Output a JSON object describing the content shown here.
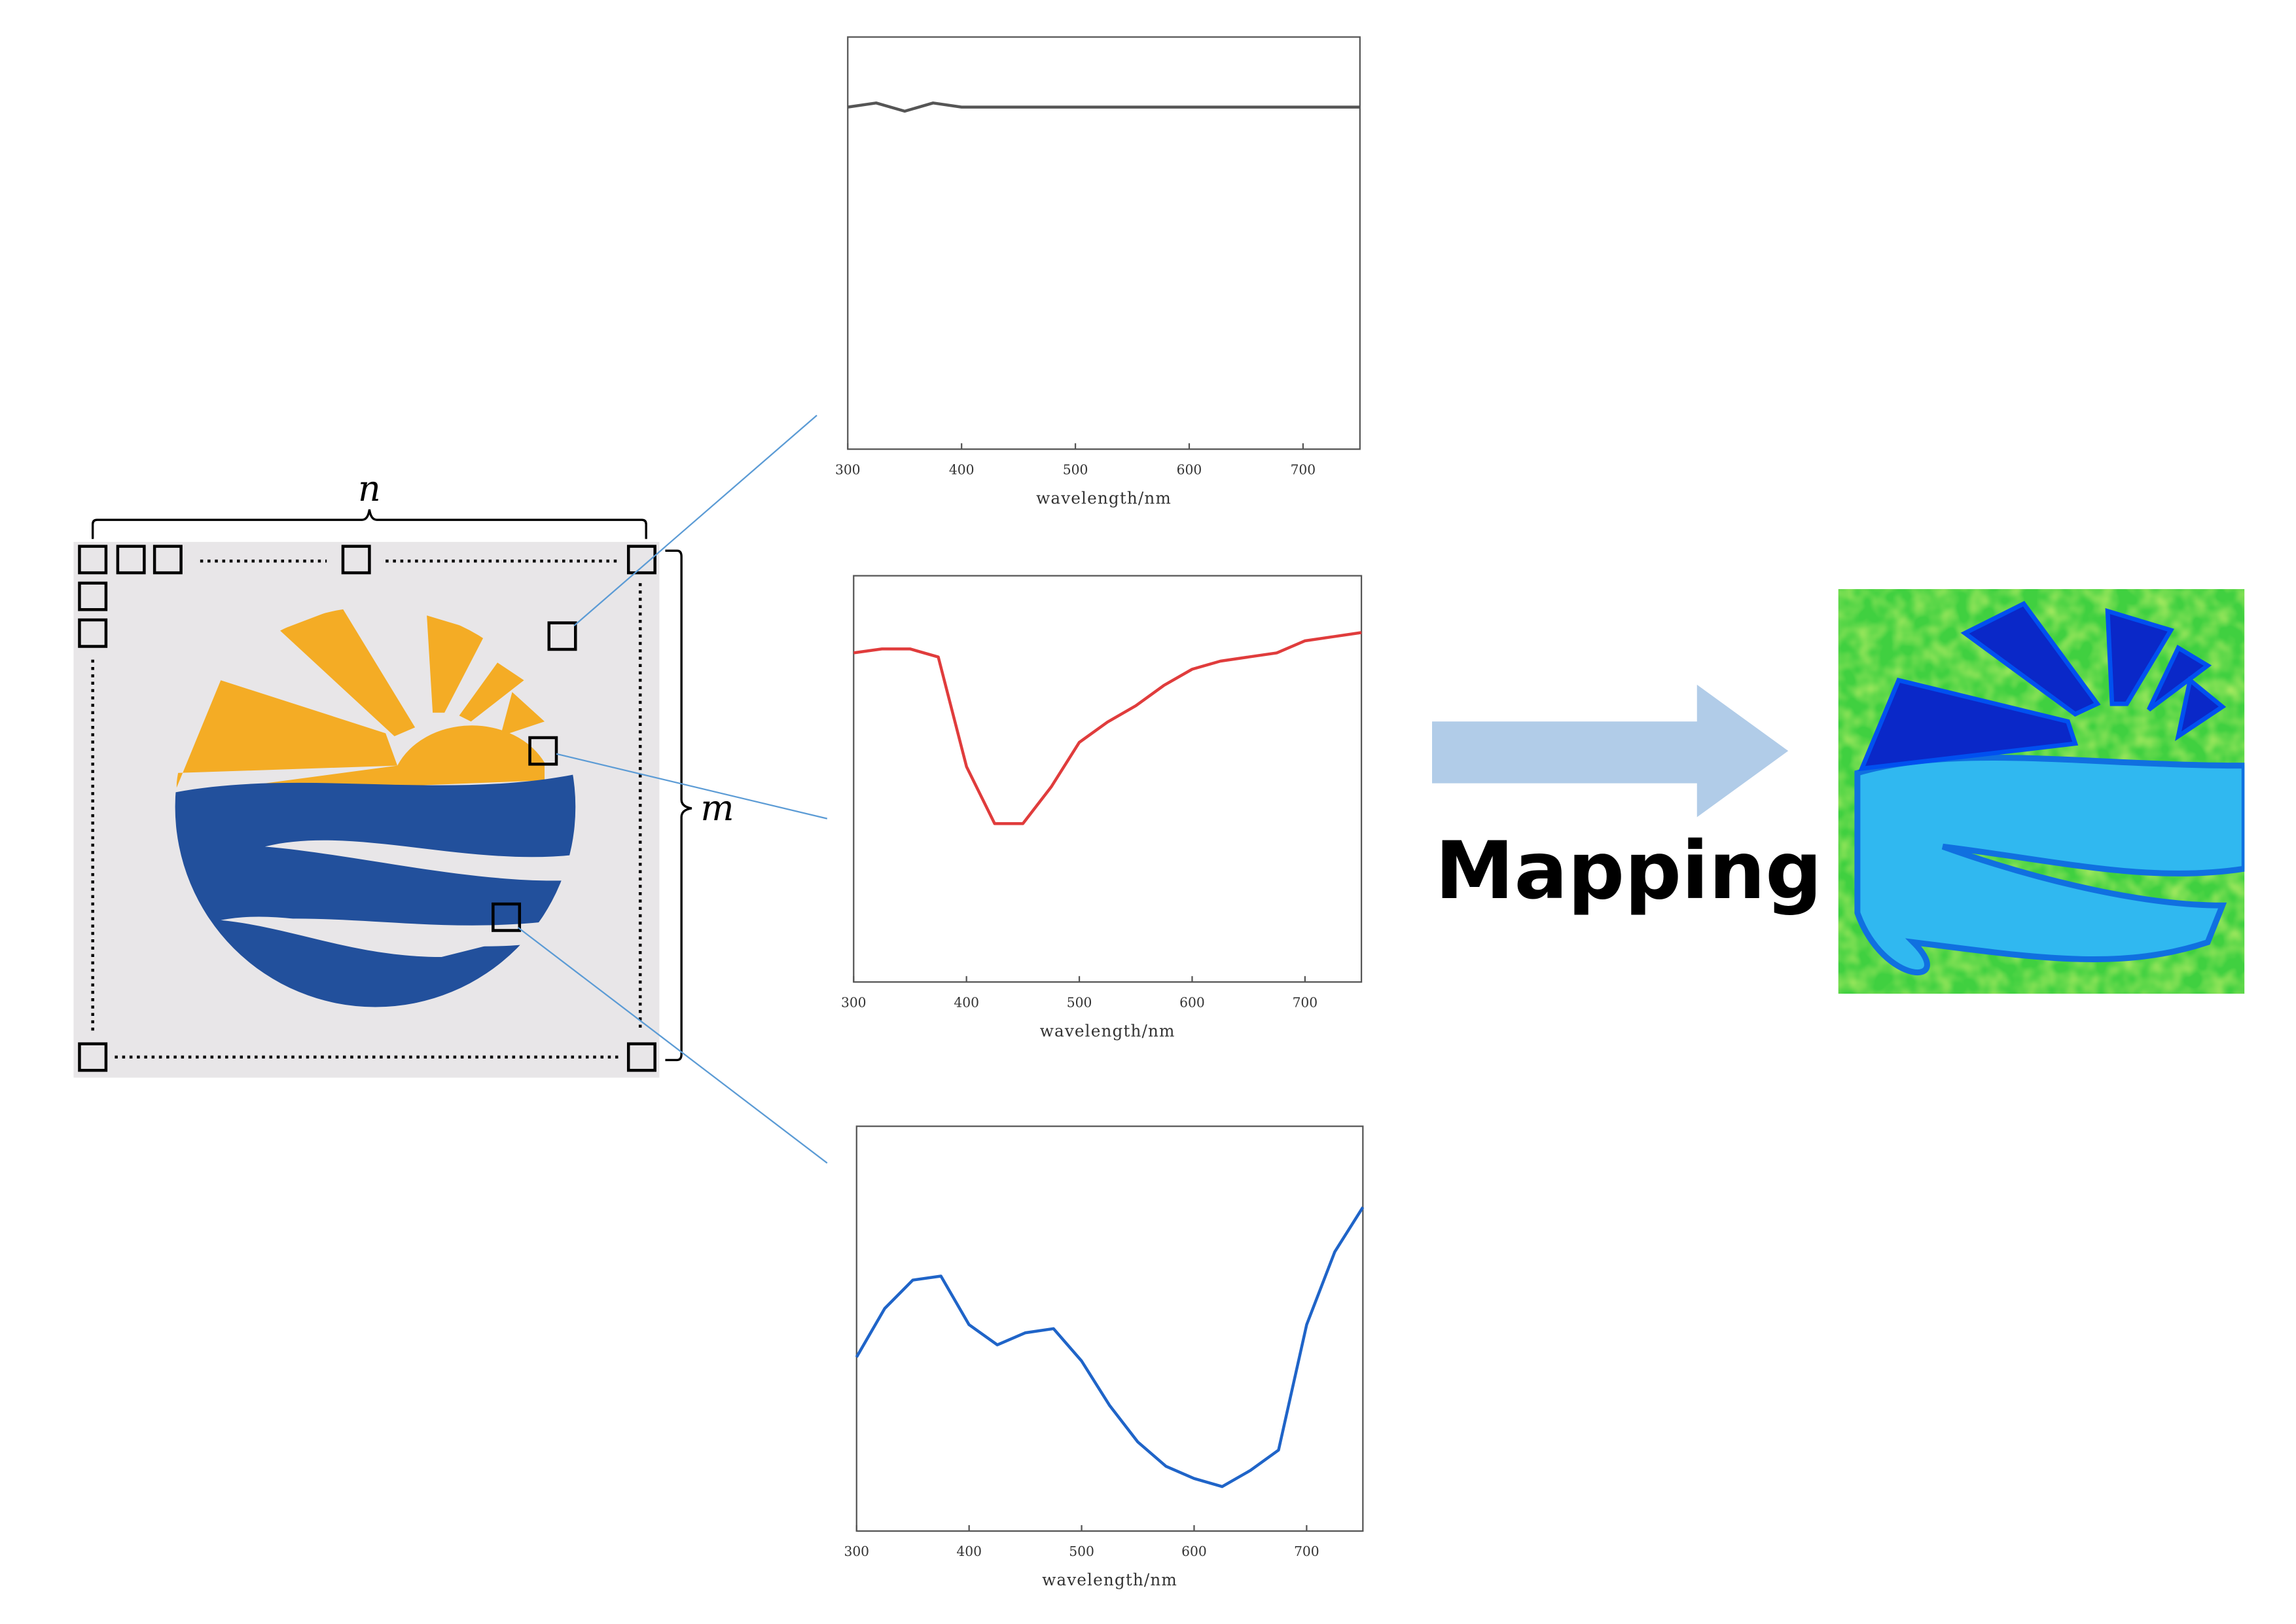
{
  "labels": {
    "n": "n",
    "m": "m",
    "mapping": "Mapping"
  },
  "chart_data": [
    {
      "type": "line",
      "color": "#555555",
      "x": [
        300,
        325,
        350,
        375,
        400,
        425,
        450,
        475,
        500,
        525,
        550,
        575,
        600,
        625,
        650,
        675,
        700,
        725,
        750
      ],
      "values": [
        0.83,
        0.84,
        0.82,
        0.84,
        0.83,
        0.83,
        0.83,
        0.83,
        0.83,
        0.83,
        0.83,
        0.83,
        0.83,
        0.83,
        0.83,
        0.83,
        0.83,
        0.83,
        0.83
      ],
      "xlim": [
        300,
        750
      ],
      "xticks": [
        300,
        400,
        500,
        600,
        700
      ],
      "ylim": [
        0,
        1
      ],
      "x_label": "wavelength/nm"
    },
    {
      "type": "line",
      "color": "#e03c3c",
      "x": [
        300,
        325,
        350,
        375,
        400,
        425,
        450,
        475,
        500,
        525,
        550,
        575,
        600,
        625,
        650,
        675,
        700,
        725,
        750
      ],
      "values": [
        0.81,
        0.82,
        0.82,
        0.8,
        0.53,
        0.39,
        0.39,
        0.48,
        0.59,
        0.64,
        0.68,
        0.73,
        0.77,
        0.79,
        0.8,
        0.81,
        0.84,
        0.85,
        0.86
      ],
      "xlim": [
        300,
        750
      ],
      "xticks": [
        300,
        400,
        500,
        600,
        700
      ],
      "ylim": [
        0,
        1
      ],
      "x_label": "wavelength/nm"
    },
    {
      "type": "line",
      "color": "#1f64c8",
      "x": [
        300,
        325,
        350,
        375,
        400,
        425,
        450,
        475,
        500,
        525,
        550,
        575,
        600,
        625,
        650,
        675,
        700,
        725,
        750
      ],
      "values": [
        0.43,
        0.55,
        0.62,
        0.63,
        0.51,
        0.46,
        0.49,
        0.5,
        0.42,
        0.31,
        0.22,
        0.16,
        0.13,
        0.11,
        0.15,
        0.2,
        0.51,
        0.69,
        0.8
      ],
      "xlim": [
        300,
        750
      ],
      "xticks": [
        300,
        400,
        500,
        600,
        700
      ],
      "ylim": [
        0,
        1
      ],
      "x_label": "wavelength/nm"
    }
  ]
}
